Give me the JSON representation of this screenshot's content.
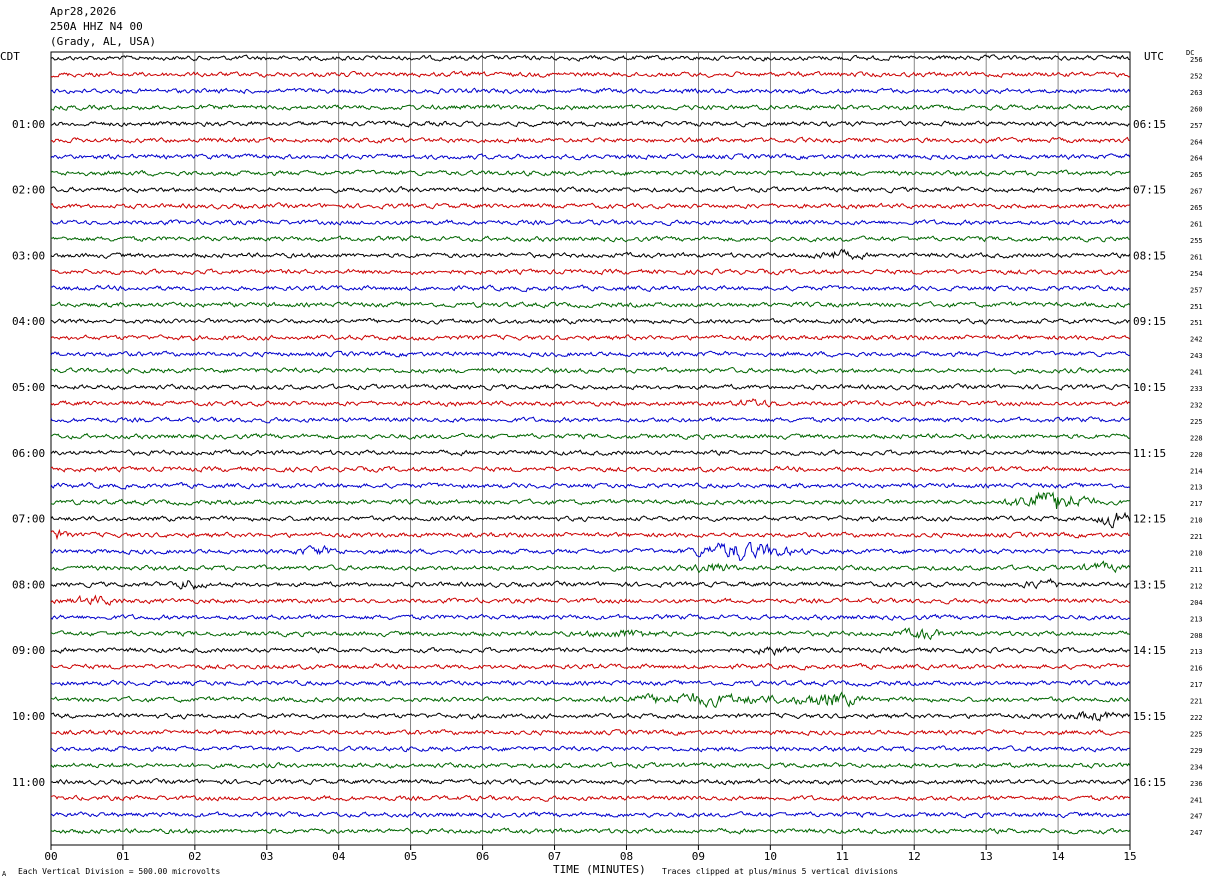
{
  "header": {
    "date": "Apr28,2026",
    "station": "250A HHZ N4 00",
    "location": "(Grady, AL, USA)"
  },
  "left_axis_title": "CDT",
  "right_axis_title": "UTC",
  "dc_title": "DC",
  "footer": {
    "scale_note": "Each Vertical Division =  500.00 microvolts",
    "clip_note": "Traces clipped at plus/minus 5 vertical divisions",
    "corner_mark": "A"
  },
  "colors": {
    "trace_cycle": [
      "#000000",
      "#cc0000",
      "#0000cc",
      "#006600"
    ],
    "grid": "#555555"
  },
  "chart_data": {
    "type": "line",
    "title": "",
    "xlabel": "TIME (MINUTES)",
    "x_ticks": [
      "00",
      "01",
      "02",
      "03",
      "04",
      "05",
      "06",
      "07",
      "08",
      "09",
      "10",
      "11",
      "12",
      "13",
      "14",
      "15"
    ],
    "xlim": [
      0,
      15
    ],
    "left_time_labels": [
      "01:00",
      "02:00",
      "03:00",
      "04:00",
      "05:00",
      "06:00",
      "07:00",
      "08:00",
      "09:00",
      "10:00",
      "11:00"
    ],
    "right_time_labels": [
      "06:15",
      "07:15",
      "08:15",
      "09:15",
      "10:15",
      "11:15",
      "12:15",
      "13:15",
      "14:15",
      "15:15",
      "16:15"
    ],
    "dc_offsets": [
      "256",
      "252",
      "263",
      "260",
      "257",
      "264",
      "264",
      "265",
      "267",
      "265",
      "261",
      "255",
      "261",
      "254",
      "257",
      "251",
      "251",
      "242",
      "243",
      "241",
      "233",
      "232",
      "225",
      "228",
      "220",
      "214",
      "213",
      "217",
      "210",
      "221",
      "210",
      "211",
      "212",
      "204",
      "213",
      "208",
      "213",
      "216",
      "217",
      "221",
      "222",
      "225",
      "229",
      "234",
      "236",
      "241",
      "247",
      "247"
    ],
    "events": [
      {
        "trace": 12,
        "minute": 10.9,
        "amp": 1.5,
        "dur": 0.5
      },
      {
        "trace": 21,
        "minute": 9.8,
        "amp": 1.2,
        "dur": 0.4
      },
      {
        "trace": 27,
        "minute": 13.9,
        "amp": 5.0,
        "dur": 0.7
      },
      {
        "trace": 28,
        "minute": 14.8,
        "amp": 4.0,
        "dur": 0.3
      },
      {
        "trace": 29,
        "minute": 0.0,
        "amp": 2.0,
        "dur": 0.3
      },
      {
        "trace": 30,
        "minute": 9.6,
        "amp": 3.5,
        "dur": 0.9
      },
      {
        "trace": 30,
        "minute": 3.7,
        "amp": 1.5,
        "dur": 0.4
      },
      {
        "trace": 31,
        "minute": 9.2,
        "amp": 2.0,
        "dur": 0.4
      },
      {
        "trace": 31,
        "minute": 14.6,
        "amp": 1.5,
        "dur": 0.4
      },
      {
        "trace": 32,
        "minute": 1.9,
        "amp": 1.8,
        "dur": 0.3
      },
      {
        "trace": 32,
        "minute": 13.8,
        "amp": 1.5,
        "dur": 0.4
      },
      {
        "trace": 33,
        "minute": 0.6,
        "amp": 1.3,
        "dur": 0.5
      },
      {
        "trace": 35,
        "minute": 12.1,
        "amp": 1.8,
        "dur": 0.4
      },
      {
        "trace": 35,
        "minute": 8.0,
        "amp": 1.3,
        "dur": 0.7
      },
      {
        "trace": 36,
        "minute": 10.0,
        "amp": 1.4,
        "dur": 0.3
      },
      {
        "trace": 39,
        "minute": 10.8,
        "amp": 2.8,
        "dur": 0.6
      },
      {
        "trace": 39,
        "minute": 9.0,
        "amp": 2.0,
        "dur": 1.6
      },
      {
        "trace": 40,
        "minute": 14.5,
        "amp": 1.6,
        "dur": 0.5
      }
    ]
  }
}
